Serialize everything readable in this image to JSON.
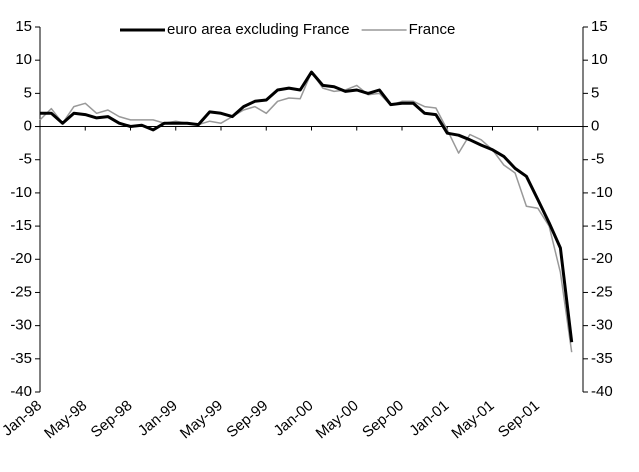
{
  "chart_data": {
    "type": "line",
    "categories": [
      "Jan-98",
      null,
      null,
      null,
      "May-98",
      null,
      null,
      null,
      "Sep-98",
      null,
      null,
      null,
      "Jan-99",
      null,
      null,
      null,
      "May-99",
      null,
      null,
      null,
      "Sep-99",
      null,
      null,
      null,
      "Jan-00",
      null,
      null,
      null,
      "May-00",
      null,
      null,
      null,
      "Sep-00",
      null,
      null,
      null,
      "Jan-01",
      null,
      null,
      null,
      "May-01",
      null,
      null,
      null,
      "Sep-01",
      null,
      null,
      null
    ],
    "series": [
      {
        "name": "euro area excluding France",
        "color": "#000000",
        "values": [
          2,
          2,
          0.5,
          2,
          1.8,
          1.3,
          1.5,
          0.5,
          0,
          0.2,
          -0.5,
          0.5,
          0.5,
          0.5,
          0.3,
          2.2,
          2,
          1.5,
          3,
          3.8,
          4,
          5.5,
          5.8,
          5.5,
          8.2,
          6.2,
          6,
          5.3,
          5.5,
          5,
          5.5,
          3.3,
          3.5,
          3.5,
          2,
          1.8,
          -1,
          -1.3,
          -2,
          -2.8,
          -3.5,
          -4.5,
          -6.3,
          -7.5,
          -11,
          -14.5,
          -18.3,
          -32.5
        ]
      },
      {
        "name": "France",
        "color": "#999999",
        "values": [
          1,
          2.7,
          0.5,
          3,
          3.5,
          2,
          2.5,
          1.5,
          1,
          1,
          1,
          0.5,
          0.8,
          0.5,
          0.3,
          0.8,
          0.5,
          1.5,
          2.5,
          3,
          2,
          3.8,
          4.3,
          4.2,
          8.2,
          5.8,
          5.3,
          5.5,
          6.2,
          4.8,
          5,
          3.2,
          3.8,
          3.8,
          3,
          2.8,
          -0.5,
          -4,
          -1.2,
          -2,
          -3.5,
          -5.8,
          -7,
          -12,
          -12.3,
          -15,
          -22,
          -34
        ]
      }
    ],
    "ylim": [
      -40,
      15
    ],
    "yticks": [
      15,
      10,
      5,
      0,
      -5,
      -10,
      -15,
      -20,
      -25,
      -30,
      -35,
      -40
    ],
    "y2lim": [
      -40,
      15
    ],
    "y2ticks": [
      15,
      10,
      5,
      0,
      -5,
      -10,
      -15,
      -20,
      -25,
      -30,
      -35,
      -40
    ],
    "legend": "top"
  }
}
